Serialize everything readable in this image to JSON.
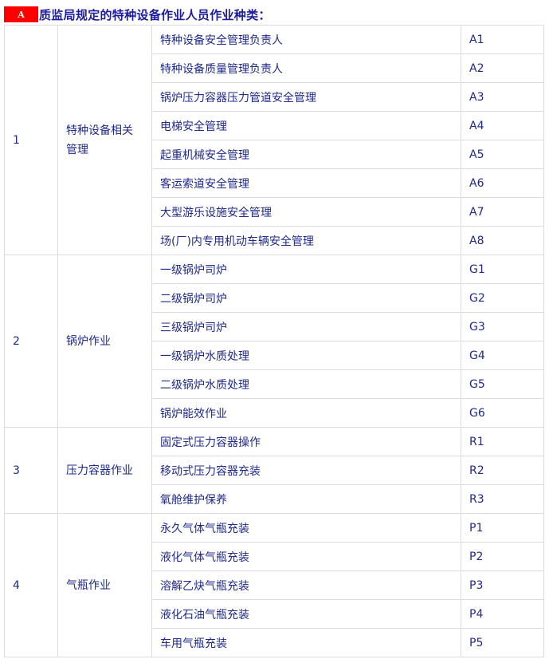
{
  "header": {
    "badge": "A",
    "title": "质监局规定的特种设备作业人员作业种类："
  },
  "groups": [
    {
      "no": "1",
      "category": "特种设备相关管理",
      "items": [
        {
          "name": "特种设备安全管理负责人",
          "code": "A1"
        },
        {
          "name": "特种设备质量管理负责人",
          "code": "A2"
        },
        {
          "name": "锅炉压力容器压力管道安全管理",
          "code": "A3"
        },
        {
          "name": "电梯安全管理",
          "code": "A4"
        },
        {
          "name": "起重机械安全管理",
          "code": "A5"
        },
        {
          "name": "客运索道安全管理",
          "code": "A6"
        },
        {
          "name": "大型游乐设施安全管理",
          "code": "A7"
        },
        {
          "name": "场(厂)内专用机动车辆安全管理",
          "code": "A8"
        }
      ]
    },
    {
      "no": "2",
      "category": "锅炉作业",
      "items": [
        {
          "name": "一级锅炉司炉",
          "code": "G1"
        },
        {
          "name": "二级锅炉司炉",
          "code": "G2"
        },
        {
          "name": "三级锅炉司炉",
          "code": "G3"
        },
        {
          "name": "一级锅炉水质处理",
          "code": "G4"
        },
        {
          "name": "二级锅炉水质处理",
          "code": "G5"
        },
        {
          "name": "锅炉能效作业",
          "code": "G6"
        }
      ]
    },
    {
      "no": "3",
      "category": "压力容器作业",
      "items": [
        {
          "name": "固定式压力容器操作",
          "code": "R1"
        },
        {
          "name": "移动式压力容器充装",
          "code": "R2"
        },
        {
          "name": "氧舱维护保养",
          "code": "R3"
        }
      ]
    },
    {
      "no": "4",
      "category": "气瓶作业",
      "items": [
        {
          "name": "永久气体气瓶充装",
          "code": "P1"
        },
        {
          "name": "液化气体气瓶充装",
          "code": "P2"
        },
        {
          "name": "溶解乙炔气瓶充装",
          "code": "P3"
        },
        {
          "name": "液化石油气瓶充装",
          "code": "P4"
        },
        {
          "name": "车用气瓶充装",
          "code": "P5"
        }
      ]
    }
  ]
}
